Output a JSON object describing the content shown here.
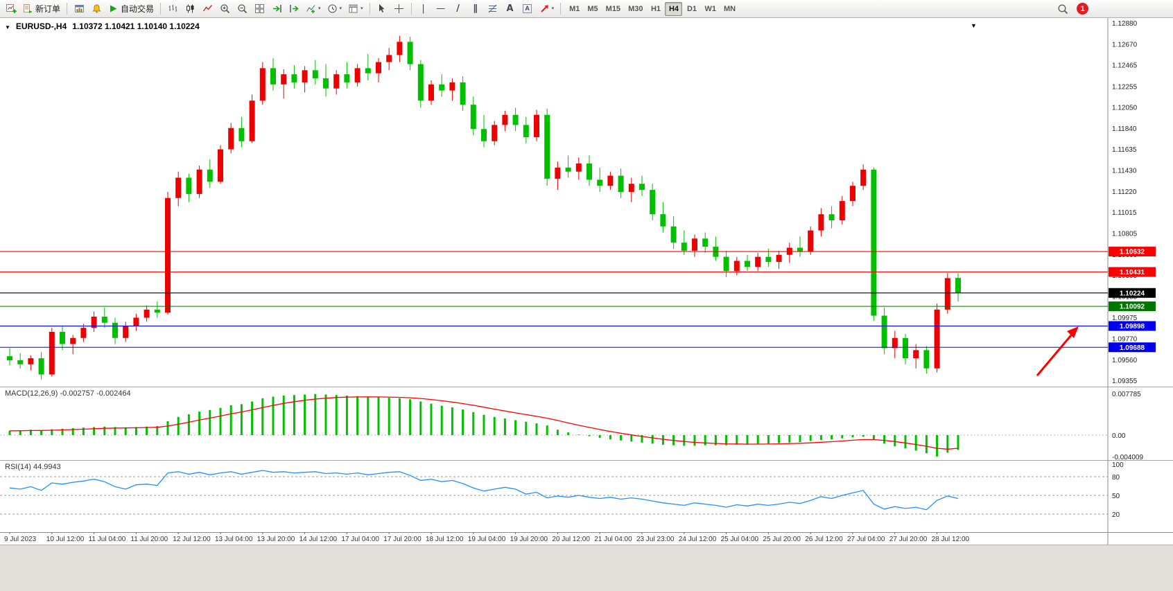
{
  "toolbar": {
    "new_order_label": "新订单",
    "auto_trading_label": "自动交易",
    "timeframes": [
      "M1",
      "M5",
      "M15",
      "M30",
      "H1",
      "H4",
      "D1",
      "W1",
      "MN"
    ],
    "active_timeframe": "H4",
    "notification_count": "1",
    "icon_names": [
      "new-chart",
      "new-order",
      "profiles",
      "alerts",
      "auto-trading-play",
      "bar-chart-type",
      "candle-chart-type",
      "line-chart-type",
      "zoom-in",
      "zoom-out",
      "tile-windows",
      "auto-scroll",
      "chart-shift",
      "indicators",
      "periods",
      "templates",
      "cursor",
      "crosshair",
      "vertical-line",
      "horizontal-line",
      "trendline",
      "equidistant-channel",
      "fibonacci",
      "text",
      "text-label",
      "arrows",
      "search",
      "notifications"
    ]
  },
  "glyphs": {
    "caret": "▾",
    "marker": "▼",
    "text_tool": "A",
    "trend": "/",
    "hline": "—",
    "vline": "|",
    "channel": "∥"
  },
  "chart": {
    "symbol_title": "EURUSD-,H4",
    "ohlc_line": "1.10372 1.10421 1.10140 1.10224"
  },
  "chart_data": {
    "type": "candlestick",
    "symbol": "EURUSD-",
    "timeframe": "H4",
    "price_max": 1.1288,
    "price_min": 1.09355,
    "price_axis": [
      "1.12880",
      "1.12670",
      "1.12465",
      "1.12255",
      "1.12050",
      "1.11840",
      "1.11635",
      "1.11430",
      "1.11220",
      "1.11015",
      "1.10805",
      "1.10600",
      "1.10395",
      "1.10185",
      "1.09975",
      "1.09770",
      "1.09560",
      "1.09355"
    ],
    "time_axis": [
      "9 Jul 2023",
      "10 Jul 12:00",
      "11 Jul 04:00",
      "11 Jul 20:00",
      "12 Jul 12:00",
      "13 Jul 04:00",
      "13 Jul 20:00",
      "14 Jul 12:00",
      "17 Jul 04:00",
      "17 Jul 20:00",
      "18 Jul 12:00",
      "19 Jul 04:00",
      "19 Jul 20:00",
      "20 Jul 12:00",
      "21 Jul 04:00",
      "23 Jul 23:00",
      "24 Jul 12:00",
      "25 Jul 04:00",
      "25 Jul 20:00",
      "26 Jul 12:00",
      "27 Jul 04:00",
      "27 Jul 20:00",
      "28 Jul 12:00"
    ],
    "colors": {
      "bull": "#ee0000",
      "bear": "#00c000",
      "macd_histogram": "#00c000",
      "macd_signal": "#ff0000",
      "rsi_line": "#1e90ff",
      "arrow": "#ff0000"
    },
    "hlines": [
      {
        "price": 1.10632,
        "label": "1.10632",
        "color": "#ff0000"
      },
      {
        "price": 1.10431,
        "label": "1.10431",
        "color": "#ff0000"
      },
      {
        "price": 1.10224,
        "label": "1.10224",
        "color": "#000000"
      },
      {
        "price": 1.10092,
        "label": "1.10092",
        "color": "#007800"
      },
      {
        "price": 1.09898,
        "label": "1.09898",
        "color": "#0000ee"
      },
      {
        "price": 1.09688,
        "label": "1.09688",
        "color": "#0000ee"
      }
    ],
    "candles": [
      [
        1.096,
        1.0968,
        1.0951,
        1.0956
      ],
      [
        1.0956,
        1.0963,
        1.0948,
        1.0952
      ],
      [
        1.0952,
        1.0961,
        1.0946,
        1.0958
      ],
      [
        1.0958,
        1.0964,
        1.0937,
        1.0942
      ],
      [
        1.0942,
        1.0988,
        1.094,
        1.0984
      ],
      [
        1.0984,
        1.099,
        1.0966,
        1.0972
      ],
      [
        1.0972,
        1.0981,
        1.0962,
        1.0978
      ],
      [
        1.0978,
        1.0992,
        1.0974,
        1.0988
      ],
      [
        1.0988,
        1.1004,
        1.0984,
        1.0999
      ],
      [
        1.0999,
        1.1008,
        1.0988,
        1.0993
      ],
      [
        1.0993,
        1.0998,
        1.0972,
        1.0978
      ],
      [
        1.0978,
        1.0994,
        1.0974,
        1.099
      ],
      [
        1.099,
        1.1002,
        1.0985,
        1.0998
      ],
      [
        1.0998,
        1.101,
        1.0994,
        1.1006
      ],
      [
        1.1006,
        1.1014,
        1.0998,
        1.1003
      ],
      [
        1.1003,
        1.1122,
        1.1001,
        1.1116
      ],
      [
        1.1116,
        1.1142,
        1.1108,
        1.1136
      ],
      [
        1.1136,
        1.114,
        1.1112,
        1.112
      ],
      [
        1.112,
        1.1148,
        1.1116,
        1.1144
      ],
      [
        1.1144,
        1.1154,
        1.1126,
        1.1132
      ],
      [
        1.1132,
        1.1168,
        1.113,
        1.1164
      ],
      [
        1.1164,
        1.119,
        1.116,
        1.1185
      ],
      [
        1.1185,
        1.1196,
        1.1166,
        1.1172
      ],
      [
        1.1172,
        1.1218,
        1.117,
        1.1212
      ],
      [
        1.1212,
        1.125,
        1.1208,
        1.1244
      ],
      [
        1.1244,
        1.1254,
        1.1222,
        1.1228
      ],
      [
        1.1228,
        1.1243,
        1.1214,
        1.1238
      ],
      [
        1.1238,
        1.1247,
        1.1224,
        1.123
      ],
      [
        1.123,
        1.1246,
        1.122,
        1.1242
      ],
      [
        1.1242,
        1.1252,
        1.1228,
        1.1234
      ],
      [
        1.1234,
        1.1248,
        1.1216,
        1.1224
      ],
      [
        1.1224,
        1.1242,
        1.1218,
        1.1238
      ],
      [
        1.1238,
        1.125,
        1.1224,
        1.123
      ],
      [
        1.123,
        1.1248,
        1.1226,
        1.1244
      ],
      [
        1.1244,
        1.1258,
        1.1232,
        1.1239
      ],
      [
        1.1239,
        1.1254,
        1.123,
        1.125
      ],
      [
        1.125,
        1.1264,
        1.1242,
        1.1257
      ],
      [
        1.1257,
        1.1276,
        1.125,
        1.127
      ],
      [
        1.127,
        1.1275,
        1.1242,
        1.1248
      ],
      [
        1.1248,
        1.1252,
        1.1205,
        1.1212
      ],
      [
        1.1212,
        1.1232,
        1.1208,
        1.1228
      ],
      [
        1.1228,
        1.1238,
        1.1216,
        1.1222
      ],
      [
        1.1222,
        1.1234,
        1.1212,
        1.123
      ],
      [
        1.123,
        1.1236,
        1.1202,
        1.1208
      ],
      [
        1.1208,
        1.1216,
        1.1178,
        1.1184
      ],
      [
        1.1184,
        1.1198,
        1.1166,
        1.1172
      ],
      [
        1.1172,
        1.1192,
        1.1168,
        1.1188
      ],
      [
        1.1188,
        1.1202,
        1.1182,
        1.1198
      ],
      [
        1.1198,
        1.1205,
        1.1182,
        1.1188
      ],
      [
        1.1188,
        1.1196,
        1.117,
        1.1176
      ],
      [
        1.1176,
        1.1203,
        1.1172,
        1.1198
      ],
      [
        1.1198,
        1.1204,
        1.1128,
        1.1135
      ],
      [
        1.1135,
        1.1152,
        1.1124,
        1.1146
      ],
      [
        1.1146,
        1.1158,
        1.1136,
        1.1142
      ],
      [
        1.1142,
        1.1156,
        1.1134,
        1.115
      ],
      [
        1.115,
        1.1158,
        1.1128,
        1.1134
      ],
      [
        1.1134,
        1.1146,
        1.1122,
        1.1128
      ],
      [
        1.1128,
        1.1142,
        1.1124,
        1.1138
      ],
      [
        1.1138,
        1.1145,
        1.1116,
        1.1122
      ],
      [
        1.1122,
        1.1136,
        1.1112,
        1.113
      ],
      [
        1.113,
        1.1138,
        1.1118,
        1.1124
      ],
      [
        1.1124,
        1.113,
        1.1094,
        1.11
      ],
      [
        1.11,
        1.1112,
        1.1082,
        1.1088
      ],
      [
        1.1088,
        1.1098,
        1.1066,
        1.1072
      ],
      [
        1.1072,
        1.1084,
        1.106,
        1.1064
      ],
      [
        1.1064,
        1.108,
        1.1058,
        1.1076
      ],
      [
        1.1076,
        1.1082,
        1.1062,
        1.1068
      ],
      [
        1.1068,
        1.1078,
        1.1054,
        1.1058
      ],
      [
        1.1058,
        1.1064,
        1.1038,
        1.1044
      ],
      [
        1.1044,
        1.1058,
        1.104,
        1.1054
      ],
      [
        1.1054,
        1.106,
        1.1044,
        1.1048
      ],
      [
        1.1048,
        1.1062,
        1.1044,
        1.1058
      ],
      [
        1.1058,
        1.1066,
        1.1048,
        1.1053
      ],
      [
        1.1053,
        1.1064,
        1.1046,
        1.106
      ],
      [
        1.106,
        1.1072,
        1.1052,
        1.1067
      ],
      [
        1.1067,
        1.1078,
        1.1058,
        1.1063
      ],
      [
        1.1063,
        1.1088,
        1.106,
        1.1084
      ],
      [
        1.1084,
        1.1106,
        1.1078,
        1.11
      ],
      [
        1.11,
        1.1108,
        1.1086,
        1.1094
      ],
      [
        1.1094,
        1.1118,
        1.109,
        1.1113
      ],
      [
        1.1113,
        1.1132,
        1.1108,
        1.1128
      ],
      [
        1.1128,
        1.1149,
        1.1124,
        1.1144
      ],
      [
        1.1144,
        1.1146,
        1.0995,
        1.1
      ],
      [
        1.1,
        1.1008,
        1.0962,
        1.0968
      ],
      [
        1.0968,
        1.0985,
        1.0958,
        1.0978
      ],
      [
        1.0978,
        1.0982,
        1.0952,
        1.0958
      ],
      [
        1.0958,
        1.0972,
        1.0948,
        1.0966
      ],
      [
        1.0966,
        1.097,
        1.0943,
        1.0948
      ],
      [
        1.0948,
        1.1012,
        1.0944,
        1.1006
      ],
      [
        1.1006,
        1.1042,
        1.1002,
        1.1037
      ],
      [
        1.10372,
        1.10421,
        1.1014,
        1.10224
      ]
    ],
    "indicators": {
      "macd": {
        "label": "MACD(12,26,9) -0.002757 -0.002464",
        "scale_max": 0.007785,
        "scale_min": -0.004009,
        "scale_labels": [
          "0.007785",
          "0.00",
          "-0.004009"
        ],
        "main": [
          0.0008,
          0.0009,
          0.001,
          0.0009,
          0.0011,
          0.0012,
          0.0013,
          0.0014,
          0.0015,
          0.0016,
          0.0015,
          0.0014,
          0.0015,
          0.0016,
          0.0017,
          0.0026,
          0.0034,
          0.0039,
          0.0044,
          0.0047,
          0.0051,
          0.0056,
          0.0058,
          0.0063,
          0.0069,
          0.0072,
          0.0074,
          0.0075,
          0.0076,
          0.0077,
          0.0076,
          0.0075,
          0.0074,
          0.0073,
          0.0072,
          0.0071,
          0.007,
          0.0069,
          0.0067,
          0.0063,
          0.0059,
          0.0055,
          0.0052,
          0.0048,
          0.0043,
          0.0038,
          0.0034,
          0.0031,
          0.0028,
          0.0025,
          0.0022,
          0.0018,
          0.001,
          0.0005,
          0.0001,
          -0.0002,
          -0.0005,
          -0.0008,
          -0.001,
          -0.0012,
          -0.0014,
          -0.0016,
          -0.0018,
          -0.0019,
          -0.002,
          -0.002,
          -0.0019,
          -0.0019,
          -0.0019,
          -0.0018,
          -0.0018,
          -0.0017,
          -0.0016,
          -0.0015,
          -0.0014,
          -0.0013,
          -0.0011,
          -0.0009,
          -0.0008,
          -0.0006,
          -0.0004,
          -0.0003,
          -0.0009,
          -0.0016,
          -0.0021,
          -0.0025,
          -0.0029,
          -0.0034,
          -0.004,
          -0.0033,
          -0.002757
        ],
        "signal": [
          0.0008,
          0.00082,
          0.00086,
          0.00087,
          0.00091,
          0.00097,
          0.00104,
          0.00111,
          0.00119,
          0.00127,
          0.00132,
          0.00133,
          0.00137,
          0.00141,
          0.00147,
          0.0017,
          0.00204,
          0.00241,
          0.00281,
          0.00319,
          0.00357,
          0.00398,
          0.00434,
          0.00473,
          0.00517,
          0.00557,
          0.00594,
          0.00625,
          0.00652,
          0.00675,
          0.00692,
          0.00704,
          0.00711,
          0.00715,
          0.00716,
          0.00715,
          0.00712,
          0.00707,
          0.007,
          0.00686,
          0.00667,
          0.00643,
          0.00619,
          0.00591,
          0.00559,
          0.00523,
          0.00486,
          0.00451,
          0.00417,
          0.00384,
          0.00351,
          0.00317,
          0.00274,
          0.00229,
          0.00185,
          0.00144,
          0.00105,
          0.00068,
          0.00035,
          4e-05,
          -0.00025,
          -0.00052,
          -0.00078,
          -0.001,
          -0.0012,
          -0.00136,
          -0.00147,
          -0.00156,
          -0.00163,
          -0.00166,
          -0.00169,
          -0.00169,
          -0.00167,
          -0.00164,
          -0.00159,
          -0.00153,
          -0.00145,
          -0.00134,
          -0.00123,
          -0.0011,
          -0.00096,
          -0.00083,
          -0.00084,
          -0.00099,
          -0.00121,
          -0.00147,
          -0.00176,
          -0.00209,
          -0.00247,
          -0.00264,
          -0.002464
        ]
      },
      "rsi": {
        "label": "RSI(14) 44.9943",
        "levels": [
          80,
          50,
          20
        ],
        "scale_labels": [
          "100",
          "80",
          "50",
          "20"
        ],
        "values": [
          62,
          60,
          64,
          58,
          70,
          68,
          71,
          73,
          76,
          72,
          64,
          60,
          67,
          68,
          66,
          86,
          88,
          84,
          87,
          83,
          86,
          88,
          84,
          87,
          90,
          87,
          88,
          86,
          87,
          88,
          85,
          86,
          84,
          86,
          83,
          85,
          87,
          88,
          82,
          74,
          76,
          72,
          74,
          69,
          62,
          57,
          60,
          63,
          60,
          52,
          55,
          46,
          49,
          47,
          50,
          47,
          45,
          47,
          44,
          46,
          44,
          41,
          38,
          36,
          34,
          38,
          36,
          34,
          31,
          35,
          33,
          36,
          34,
          36,
          39,
          37,
          42,
          48,
          45,
          50,
          54,
          58,
          36,
          28,
          32,
          29,
          31,
          27,
          42,
          49,
          44.99
        ]
      }
    },
    "annotations": [
      {
        "type": "arrow",
        "direction": "up-right",
        "color": "#ff0000"
      }
    ]
  }
}
